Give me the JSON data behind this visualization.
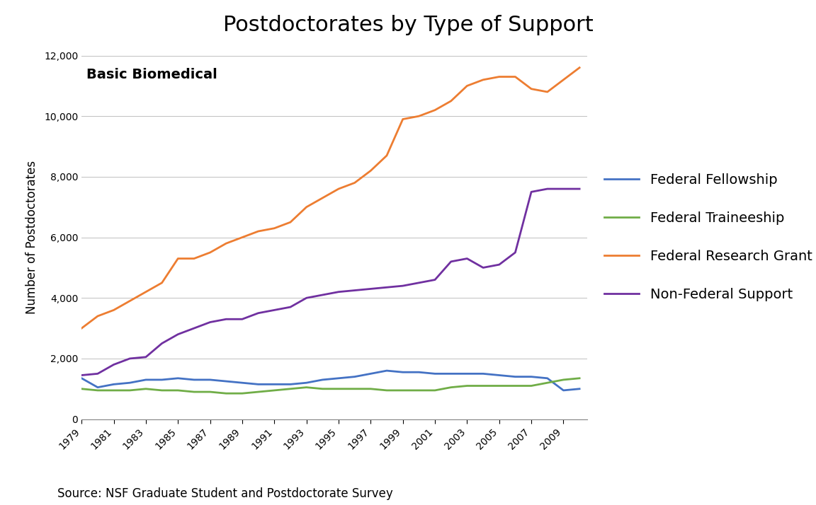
{
  "title": "Postdoctorates by Type of Support",
  "subtitle": "Basic Biomedical",
  "ylabel": "Number of Postdoctorates",
  "source": "Source: NSF Graduate Student and Postdoctorate Survey",
  "years": [
    1979,
    1980,
    1981,
    1982,
    1983,
    1984,
    1985,
    1986,
    1987,
    1988,
    1989,
    1990,
    1991,
    1992,
    1993,
    1994,
    1995,
    1996,
    1997,
    1998,
    1999,
    2000,
    2001,
    2002,
    2003,
    2004,
    2005,
    2006,
    2007,
    2008,
    2009,
    2010
  ],
  "federal_fellowship": [
    1350,
    1050,
    1150,
    1200,
    1300,
    1300,
    1350,
    1300,
    1300,
    1250,
    1200,
    1150,
    1150,
    1150,
    1200,
    1300,
    1350,
    1400,
    1500,
    1600,
    1550,
    1550,
    1500,
    1500,
    1500,
    1500,
    1450,
    1400,
    1400,
    1350,
    950,
    1000
  ],
  "federal_traineeship": [
    1000,
    950,
    950,
    950,
    1000,
    950,
    950,
    900,
    900,
    850,
    850,
    900,
    950,
    1000,
    1050,
    1000,
    1000,
    1000,
    1000,
    950,
    950,
    950,
    950,
    1050,
    1100,
    1100,
    1100,
    1100,
    1100,
    1200,
    1300,
    1350
  ],
  "federal_research_grant": [
    3000,
    3400,
    3600,
    3900,
    4200,
    4500,
    5300,
    5300,
    5500,
    5800,
    6000,
    6200,
    6300,
    6500,
    7000,
    7300,
    7600,
    7800,
    8200,
    8700,
    9900,
    10000,
    10200,
    10500,
    11000,
    11200,
    11300,
    11300,
    10900,
    10800,
    11200,
    11600
  ],
  "non_federal_support": [
    1450,
    1500,
    1800,
    2000,
    2050,
    2500,
    2800,
    3000,
    3200,
    3300,
    3300,
    3500,
    3600,
    3700,
    4000,
    4100,
    4200,
    4250,
    4300,
    4350,
    4400,
    4500,
    4600,
    5200,
    5300,
    5000,
    5100,
    5500,
    7500,
    7600,
    7600,
    7600
  ],
  "fellowship_color": "#4472C4",
  "traineeship_color": "#70AD47",
  "research_grant_color": "#ED7D31",
  "non_federal_color": "#7030A0",
  "ylim": [
    0,
    12000
  ],
  "yticks": [
    0,
    2000,
    4000,
    6000,
    8000,
    10000,
    12000
  ],
  "background_color": "#FFFFFF",
  "title_fontsize": 22,
  "label_fontsize": 12,
  "legend_fontsize": 14,
  "source_fontsize": 12,
  "subtitle_fontsize": 14,
  "tick_fontsize": 10
}
